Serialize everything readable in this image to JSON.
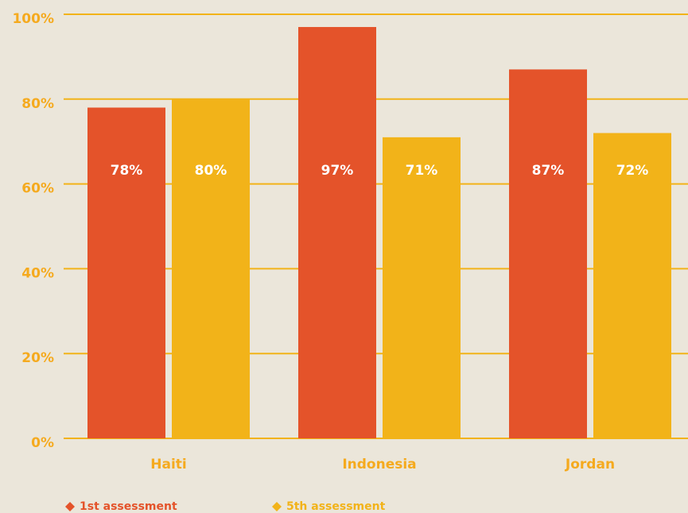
{
  "chart_data": {
    "type": "bar",
    "categories": [
      "Haiti",
      "Indonesia",
      "Jordan"
    ],
    "series": [
      {
        "name": "1st assessment",
        "color": "#e4532a",
        "values": [
          78,
          97,
          87
        ],
        "value_labels": [
          "78%",
          "97%",
          "87%"
        ]
      },
      {
        "name": "5th assessment",
        "color": "#f2b319",
        "values": [
          80,
          71,
          72
        ],
        "value_labels": [
          "80%",
          "71%",
          "72%"
        ]
      }
    ],
    "ylim": [
      0,
      100
    ],
    "yticks": [
      {
        "value": 0,
        "label": "0%"
      },
      {
        "value": 20,
        "label": "20%"
      },
      {
        "value": 40,
        "label": "40%"
      },
      {
        "value": 60,
        "label": "60%"
      },
      {
        "value": 80,
        "label": "80%"
      },
      {
        "value": 100,
        "label": "100%"
      }
    ],
    "grid": true,
    "grid_color": "#f2b319",
    "tick_color": "#f5aa1e",
    "legend": "bottom-left"
  }
}
